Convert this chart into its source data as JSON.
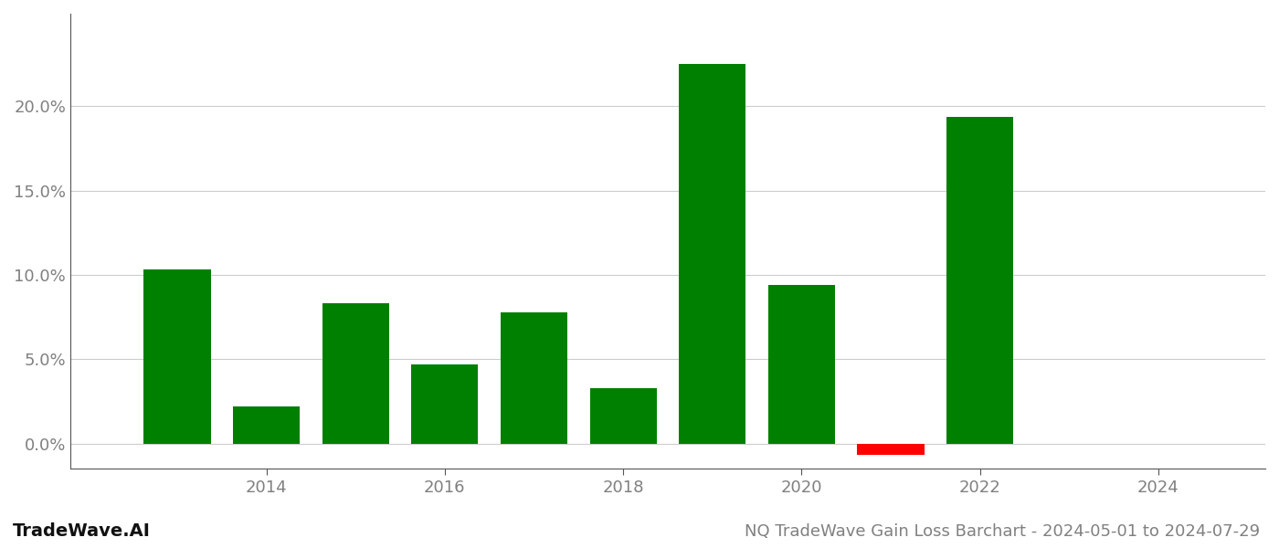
{
  "years": [
    2013,
    2014,
    2015,
    2016,
    2017,
    2018,
    2019,
    2020,
    2021,
    2022,
    2023
  ],
  "values": [
    10.3,
    2.2,
    8.3,
    4.7,
    7.8,
    3.3,
    22.5,
    9.4,
    -0.7,
    19.4,
    0.0
  ],
  "bar_colors": [
    "#008000",
    "#008000",
    "#008000",
    "#008000",
    "#008000",
    "#008000",
    "#008000",
    "#008000",
    "#ff0000",
    "#008000",
    "#008000"
  ],
  "ylabel_ticks": [
    0.0,
    5.0,
    10.0,
    15.0,
    20.0
  ],
  "ylim": [
    -1.5,
    25.5
  ],
  "xlim": [
    2011.8,
    2025.2
  ],
  "xticks": [
    2014,
    2016,
    2018,
    2020,
    2022,
    2024
  ],
  "title": "NQ TradeWave Gain Loss Barchart - 2024-05-01 to 2024-07-29",
  "watermark": "TradeWave.AI",
  "background_color": "#ffffff",
  "bar_width": 0.75,
  "grid_color": "#cccccc",
  "text_color": "#808080",
  "title_fontsize": 13,
  "watermark_fontsize": 14,
  "tick_fontsize": 13
}
